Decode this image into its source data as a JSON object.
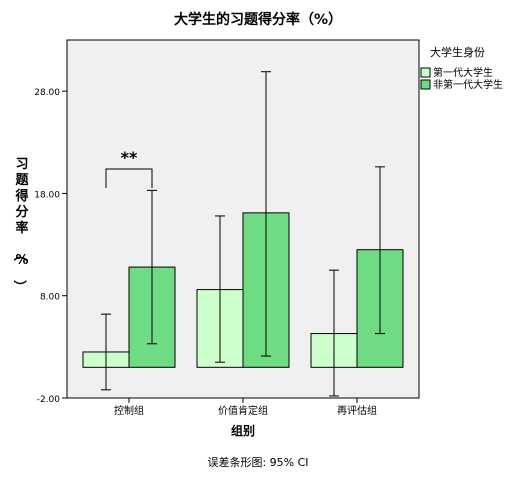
{
  "chart_data": {
    "type": "bar",
    "title": "大学生的习题得分率（%）",
    "xlabel": "组别",
    "ylabel": "习题得分率（%）",
    "categories": [
      "控制组",
      "价值肯定组",
      "再评估组"
    ],
    "ylim": [
      -2.0,
      33.0
    ],
    "yticks": [
      "-2.00",
      "8.00",
      "18.00",
      "28.00"
    ],
    "ytick_values": [
      -2,
      8,
      18,
      28
    ],
    "grid": false,
    "legend": {
      "title": "大学生身份",
      "placement": "right"
    },
    "series": [
      {
        "name": "第一代大学生",
        "color": "#ccffcc",
        "values": [
          2.5,
          8.6,
          4.3
        ],
        "ci_low": [
          -1.2,
          1.5,
          -1.8
        ],
        "ci_high": [
          6.2,
          15.8,
          10.5
        ]
      },
      {
        "name": "非第一代大学生",
        "color": "#6fdb83",
        "values": [
          10.8,
          16.1,
          12.5
        ],
        "ci_low": [
          3.3,
          2.1,
          4.3
        ],
        "ci_high": [
          18.3,
          29.9,
          20.6
        ]
      }
    ],
    "annotations": [
      {
        "text": "**",
        "category": "控制组"
      }
    ],
    "footnote": "误差条形图: 95% CI",
    "colors": {
      "plot_background": "#f0f0f0",
      "axis": "#000000"
    }
  }
}
